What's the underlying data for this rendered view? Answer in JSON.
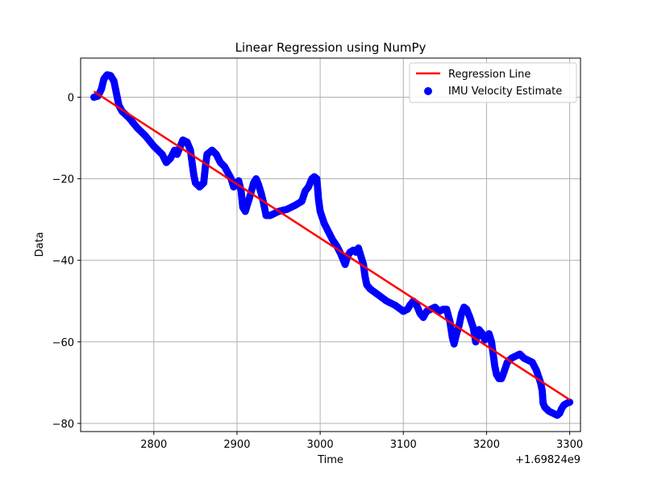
{
  "chart_data": {
    "type": "scatter",
    "title": "Linear Regression using NumPy",
    "xlabel": "Time",
    "ylabel": "Data",
    "x_offset_label": "+1.69824e9",
    "xlim": [
      2712,
      3313
    ],
    "ylim": [
      -82,
      9.6
    ],
    "xticks": [
      2800,
      2900,
      3000,
      3100,
      3200,
      3300
    ],
    "yticks": [
      0,
      -20,
      -40,
      -60,
      -80
    ],
    "ytick_labels": [
      "0",
      "−20",
      "−40",
      "−60",
      "−80"
    ],
    "grid": true,
    "legend_position": "top-right",
    "colors": {
      "scatter": "#0000ff",
      "regression": "#ff0000"
    },
    "series": [
      {
        "name": "IMU Velocity Estimate",
        "kind": "scatter",
        "points": [
          [
            2728,
            0
          ],
          [
            2733,
            0.3
          ],
          [
            2737,
            2
          ],
          [
            2740,
            4.5
          ],
          [
            2744,
            5.5
          ],
          [
            2748,
            5.3
          ],
          [
            2752,
            4
          ],
          [
            2755,
            1
          ],
          [
            2758,
            -2
          ],
          [
            2762,
            -3.5
          ],
          [
            2770,
            -5
          ],
          [
            2780,
            -7.5
          ],
          [
            2790,
            -9.5
          ],
          [
            2800,
            -12
          ],
          [
            2810,
            -14
          ],
          [
            2815,
            -16
          ],
          [
            2820,
            -15
          ],
          [
            2825,
            -13
          ],
          [
            2828,
            -14
          ],
          [
            2832,
            -12
          ],
          [
            2835,
            -10.5
          ],
          [
            2840,
            -11
          ],
          [
            2844,
            -13
          ],
          [
            2846,
            -16
          ],
          [
            2848,
            -19
          ],
          [
            2850,
            -21
          ],
          [
            2855,
            -22
          ],
          [
            2860,
            -21
          ],
          [
            2862,
            -17
          ],
          [
            2864,
            -14
          ],
          [
            2870,
            -13
          ],
          [
            2875,
            -14
          ],
          [
            2880,
            -16
          ],
          [
            2885,
            -17
          ],
          [
            2889,
            -18.5
          ],
          [
            2893,
            -20
          ],
          [
            2896,
            -22
          ],
          [
            2899,
            -21
          ],
          [
            2902,
            -20.5
          ],
          [
            2905,
            -23
          ],
          [
            2907,
            -27
          ],
          [
            2910,
            -28
          ],
          [
            2913,
            -26
          ],
          [
            2916,
            -24
          ],
          [
            2920,
            -21
          ],
          [
            2923,
            -20
          ],
          [
            2926,
            -21.5
          ],
          [
            2929,
            -23.5
          ],
          [
            2932,
            -26
          ],
          [
            2935,
            -29
          ],
          [
            2940,
            -29
          ],
          [
            2950,
            -28
          ],
          [
            2960,
            -27.5
          ],
          [
            2970,
            -26.5
          ],
          [
            2978,
            -25.5
          ],
          [
            2982,
            -23
          ],
          [
            2986,
            -22
          ],
          [
            2990,
            -20
          ],
          [
            2993,
            -19.5
          ],
          [
            2996,
            -20
          ],
          [
            2998,
            -25
          ],
          [
            3000,
            -28
          ],
          [
            3005,
            -31
          ],
          [
            3010,
            -33
          ],
          [
            3015,
            -35
          ],
          [
            3020,
            -36.5
          ],
          [
            3025,
            -38.5
          ],
          [
            3028,
            -40
          ],
          [
            3030,
            -41
          ],
          [
            3033,
            -39
          ],
          [
            3036,
            -38
          ],
          [
            3040,
            -37.5
          ],
          [
            3043,
            -38
          ],
          [
            3046,
            -37
          ],
          [
            3049,
            -39
          ],
          [
            3052,
            -41
          ],
          [
            3054,
            -44
          ],
          [
            3056,
            -46
          ],
          [
            3060,
            -47
          ],
          [
            3070,
            -48.5
          ],
          [
            3080,
            -50
          ],
          [
            3090,
            -51
          ],
          [
            3100,
            -52.5
          ],
          [
            3105,
            -52
          ],
          [
            3108,
            -51
          ],
          [
            3112,
            -50
          ],
          [
            3116,
            -51
          ],
          [
            3120,
            -53
          ],
          [
            3124,
            -54
          ],
          [
            3128,
            -52.5
          ],
          [
            3133,
            -52
          ],
          [
            3138,
            -51.5
          ],
          [
            3143,
            -52.5
          ],
          [
            3148,
            -52
          ],
          [
            3152,
            -52
          ],
          [
            3156,
            -55
          ],
          [
            3159,
            -59
          ],
          [
            3161,
            -60.5
          ],
          [
            3164,
            -58
          ],
          [
            3167,
            -56
          ],
          [
            3170,
            -53
          ],
          [
            3173,
            -51.5
          ],
          [
            3176,
            -52
          ],
          [
            3180,
            -54
          ],
          [
            3184,
            -56.5
          ],
          [
            3187,
            -60
          ],
          [
            3191,
            -57
          ],
          [
            3195,
            -58
          ],
          [
            3198,
            -59.5
          ],
          [
            3203,
            -58
          ],
          [
            3206,
            -60
          ],
          [
            3208,
            -63
          ],
          [
            3210,
            -66
          ],
          [
            3212,
            -68
          ],
          [
            3215,
            -69
          ],
          [
            3218,
            -69
          ],
          [
            3220,
            -68
          ],
          [
            3225,
            -65
          ],
          [
            3230,
            -64
          ],
          [
            3235,
            -63.5
          ],
          [
            3240,
            -63
          ],
          [
            3245,
            -64
          ],
          [
            3250,
            -64.5
          ],
          [
            3255,
            -65
          ],
          [
            3260,
            -67
          ],
          [
            3265,
            -70
          ],
          [
            3267,
            -72
          ],
          [
            3268,
            -75
          ],
          [
            3270,
            -76
          ],
          [
            3275,
            -77
          ],
          [
            3280,
            -77.5
          ],
          [
            3285,
            -78
          ],
          [
            3288,
            -77.5
          ],
          [
            3290,
            -76.5
          ],
          [
            3293,
            -75.5
          ],
          [
            3297,
            -75
          ],
          [
            3300,
            -74.8
          ]
        ]
      },
      {
        "name": "Regression Line",
        "kind": "line",
        "points": [
          [
            2728,
            1.4
          ],
          [
            3300,
            -74.2
          ]
        ]
      }
    ]
  }
}
